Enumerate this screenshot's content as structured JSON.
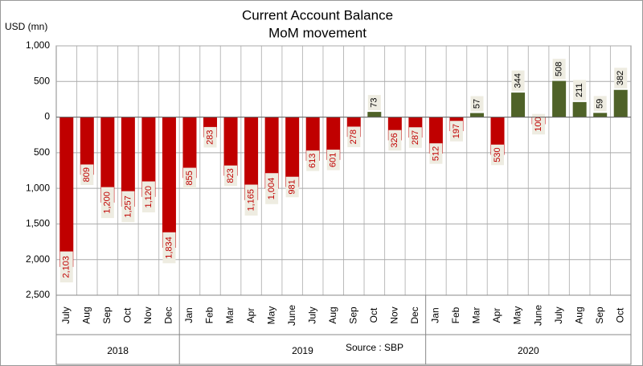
{
  "chart_data": {
    "type": "bar",
    "title": "Current Account Balance",
    "subtitle": "MoM movement",
    "y_label": "USD (mn)",
    "source": "Source : SBP",
    "categories": [
      "July",
      "Aug",
      "Sep",
      "Oct",
      "Nov",
      "Dec",
      "Jan",
      "Feb",
      "Mar",
      "Apr",
      "May",
      "June",
      "July",
      "Aug",
      "Sep",
      "Oct",
      "Nov",
      "Dec",
      "Jan",
      "Feb",
      "Mar",
      "Apr",
      "May",
      "June",
      "July",
      "Aug",
      "Sep",
      "Oct"
    ],
    "groups": [
      {
        "label": "2018",
        "count": 6
      },
      {
        "label": "2019",
        "count": 12
      },
      {
        "label": "2020",
        "count": 10
      }
    ],
    "values": [
      -2103,
      -809,
      -1200,
      -1257,
      -1120,
      -1834,
      -855,
      -283,
      -823,
      -1165,
      -1004,
      -981,
      -613,
      -601,
      -278,
      73,
      -326,
      -287,
      -512,
      -197,
      57,
      -530,
      344,
      -100,
      508,
      211,
      59,
      382
    ],
    "value_labels": [
      "2,103",
      "809",
      "1,200",
      "1,257",
      "1,120",
      "1,834",
      "855",
      "283",
      "823",
      "1,165",
      "1,004",
      "981",
      "613",
      "601",
      "278",
      "73",
      "326",
      "287",
      "512",
      "197",
      "57",
      "530",
      "344",
      "100",
      "508",
      "211",
      "59",
      "382"
    ],
    "colors": {
      "negative": "#c00000",
      "positive": "#4f6228"
    },
    "ylim": [
      -2500,
      1000
    ],
    "yticks": [
      {
        "value": -2500,
        "label": "2,500"
      },
      {
        "value": -2000,
        "label": "2,000"
      },
      {
        "value": -1500,
        "label": "1,500"
      },
      {
        "value": -1000,
        "label": "1,000"
      },
      {
        "value": -500,
        "label": "500"
      },
      0,
      500,
      {
        "value": 1000,
        "label": "1,000"
      }
    ],
    "grid": true
  }
}
